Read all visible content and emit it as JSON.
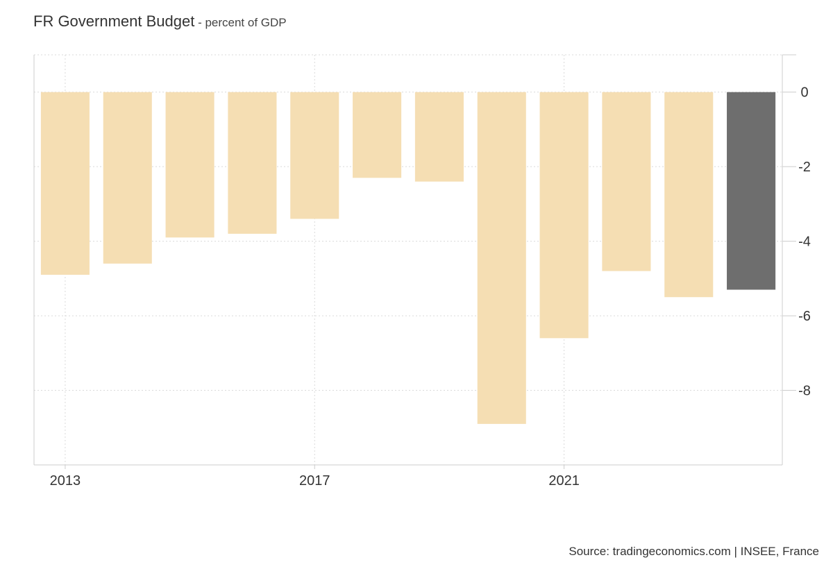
{
  "header": {
    "title": "FR Government Budget",
    "subtitle": " - percent of GDP"
  },
  "footer": {
    "source": "Source: tradingeconomics.com | INSEE, France"
  },
  "chart_data": {
    "type": "bar",
    "title": "FR Government Budget",
    "subtitle": "percent of GDP",
    "categories": [
      "2013",
      "2014",
      "2015",
      "2016",
      "2017",
      "2018",
      "2019",
      "2020",
      "2021",
      "2022",
      "2023",
      "2024"
    ],
    "values": [
      -4.9,
      -4.6,
      -3.9,
      -3.8,
      -3.4,
      -2.3,
      -2.4,
      -8.9,
      -6.6,
      -4.8,
      -5.5,
      -5.3
    ],
    "series": [
      {
        "values": [
          -4.9,
          -4.6,
          -3.9,
          -3.8,
          -3.4,
          -2.3,
          -2.4,
          -8.9,
          -6.6,
          -4.8,
          -5.5,
          -5.3
        ]
      }
    ],
    "highlight_index": 11,
    "xticks": [
      "2013",
      "2017",
      "2021"
    ],
    "yticks": [
      0,
      -2,
      -4,
      -6,
      -8
    ],
    "ylim": [
      -10,
      1
    ],
    "yaxis_side": "right",
    "grid": true,
    "colors": {
      "bar": "#f5deb3",
      "highlight": "#6e6e6e",
      "grid": "#d9d9d9",
      "axis": "#cccccc"
    }
  }
}
